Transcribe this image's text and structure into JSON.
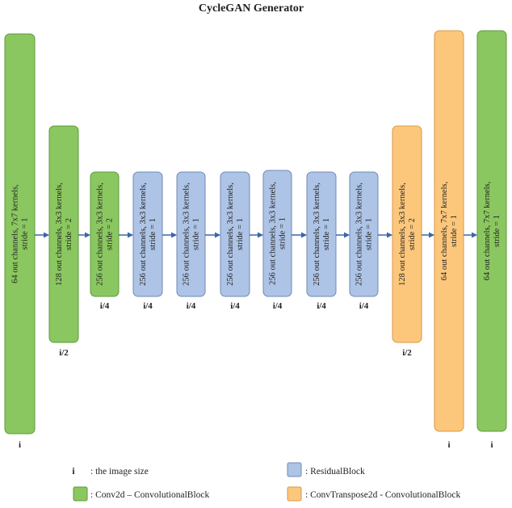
{
  "title": "CycleGAN Generator",
  "colors": {
    "conv": "#8bc760",
    "conv_stroke": "#5e9a3a",
    "residual": "#aec4e6",
    "residual_stroke": "#6f89b5",
    "transpose": "#fdc77b",
    "transpose_stroke": "#d79a48",
    "arrow": "#3b67a8"
  },
  "blocks": [
    {
      "kind": "conv",
      "line1": "64 out channels, 7x7 kernels,",
      "line2": "stride = 1",
      "size": "i"
    },
    {
      "kind": "conv",
      "line1": "128 out channels, 3x3 kernels,",
      "line2": "stride = 2",
      "size": "i/2"
    },
    {
      "kind": "conv",
      "line1": "256 out channels, 3x3 kernels,",
      "line2": "stride = 2",
      "size": "i/4"
    },
    {
      "kind": "residual",
      "line1": "256 out channels, 3x3 kernels,",
      "line2": "stride = 1",
      "size": "i/4"
    },
    {
      "kind": "residual",
      "line1": "256 out channels, 3x3 kernels,",
      "line2": "stride = 1",
      "size": "i/4"
    },
    {
      "kind": "residual",
      "line1": "256 out channels, 3x3 kernels,",
      "line2": "stride = 1",
      "size": "i/4"
    },
    {
      "kind": "residual",
      "line1": "256 out channels, 3x3 kernels,",
      "line2": "stride = 1",
      "size": "i/4"
    },
    {
      "kind": "residual",
      "line1": "256 out channels, 3x3 kernels,",
      "line2": "stride = 1",
      "size": "i/4"
    },
    {
      "kind": "residual",
      "line1": "256 out channels, 3x3 kernels,",
      "line2": "stride = 1",
      "size": "i/4"
    },
    {
      "kind": "transpose",
      "line1": "128 out channels, 3x3 kernels,",
      "line2": "stride = 2",
      "size": "i/2"
    },
    {
      "kind": "transpose",
      "line1": "64 out channels, 7x7 kernels,",
      "line2": "stride = 1",
      "size": "i"
    },
    {
      "kind": "conv",
      "line1": "64 out channels, 7x7 kernels,",
      "line2": "stride = 1",
      "size": "i"
    }
  ],
  "legend": {
    "image_symbol": "i",
    "image_label": ": the image size",
    "residual_label": ": ResidualBlock",
    "conv_label": ": Conv2d – ConvolutionalBlock",
    "transpose_label": ": ConvTranspose2d - ConvolutionalBlock"
  }
}
